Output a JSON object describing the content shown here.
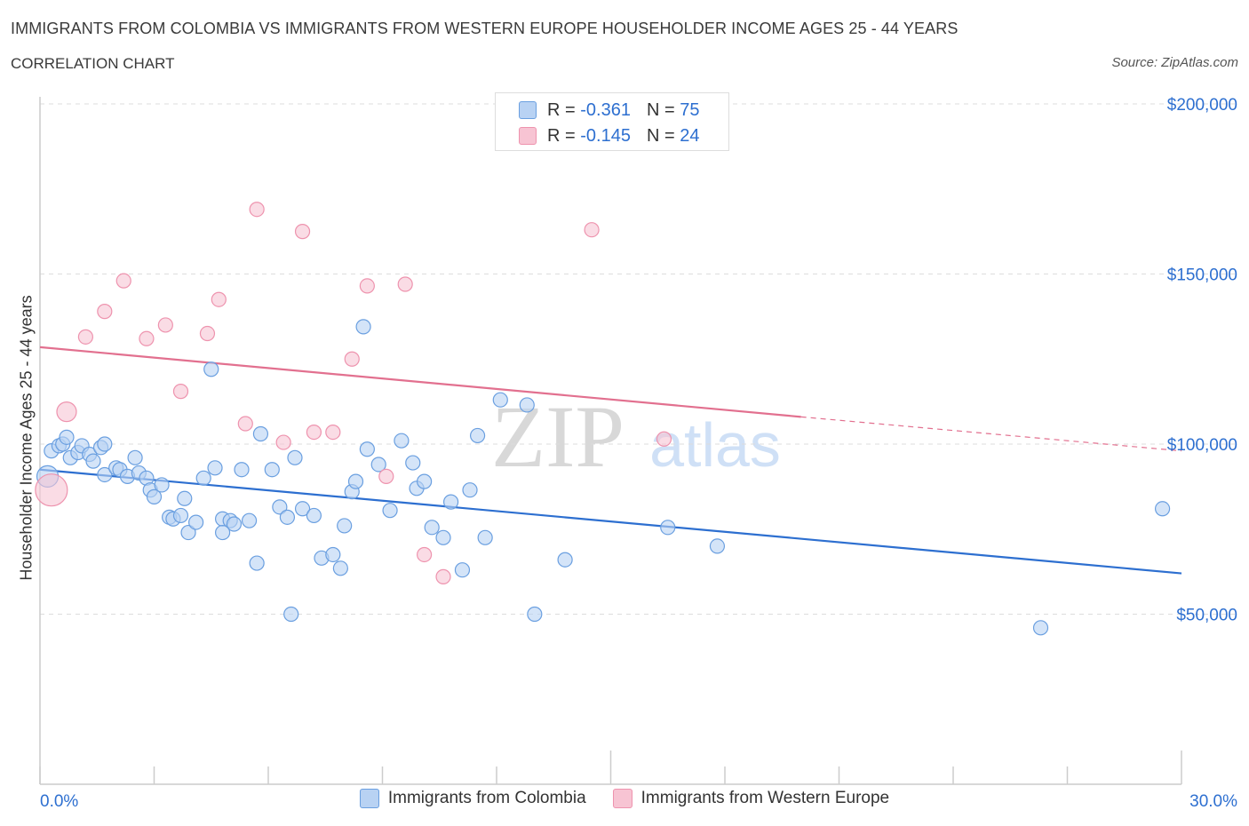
{
  "header": {
    "title": "IMMIGRANTS FROM COLOMBIA VS IMMIGRANTS FROM WESTERN EUROPE HOUSEHOLDER INCOME AGES 25 - 44 YEARS",
    "subtitle": "CORRELATION CHART",
    "source": "Source: ZipAtlas.com"
  },
  "watermark": {
    "zip": "ZIP",
    "atlas": "atlas"
  },
  "legend": {
    "rows": [
      {
        "r_label": "R =",
        "r_value": "-0.361",
        "n_label": "N =",
        "n_value": "75"
      },
      {
        "r_label": "R =",
        "r_value": "-0.145",
        "n_label": "N =",
        "n_value": "24"
      }
    ]
  },
  "colors": {
    "blue_fill": "#b8d2f3",
    "blue_stroke": "#6a9fe0",
    "blue_line": "#2d6fd0",
    "pink_fill": "#f7c4d3",
    "pink_stroke": "#ee93ae",
    "pink_line": "#e2708f",
    "tick_label": "#2d6fd0",
    "grid": "#dcdcdc"
  },
  "chart_data": {
    "type": "scatter",
    "xlabel": "",
    "ylabel": "Householder Income Ages 25 - 44 years",
    "xlim": [
      0,
      30
    ],
    "ylim": [
      0,
      200000
    ],
    "x_tick_labels": [
      "0.0%",
      "30.0%"
    ],
    "y_ticks": [
      50000,
      100000,
      150000,
      200000
    ],
    "y_tick_labels": [
      "$50,000",
      "$100,000",
      "$150,000",
      "$200,000"
    ],
    "grid": "horizontal dashed",
    "legend_position": "top-center",
    "series": [
      {
        "name": "Immigrants from Colombia",
        "color": "blue",
        "points": [
          [
            0.2,
            90500
          ],
          [
            0.3,
            98000
          ],
          [
            0.5,
            99500
          ],
          [
            0.6,
            100000
          ],
          [
            0.7,
            102000
          ],
          [
            0.8,
            96000
          ],
          [
            1.0,
            97500
          ],
          [
            1.1,
            99500
          ],
          [
            1.3,
            97000
          ],
          [
            1.4,
            95000
          ],
          [
            1.6,
            99000
          ],
          [
            1.7,
            100000
          ],
          [
            1.7,
            91000
          ],
          [
            2.0,
            93000
          ],
          [
            2.1,
            92500
          ],
          [
            2.3,
            90500
          ],
          [
            2.5,
            96000
          ],
          [
            2.6,
            91500
          ],
          [
            2.8,
            90000
          ],
          [
            2.9,
            86500
          ],
          [
            3.0,
            84500
          ],
          [
            3.2,
            88000
          ],
          [
            3.4,
            78500
          ],
          [
            3.5,
            78000
          ],
          [
            3.7,
            79000
          ],
          [
            3.8,
            84000
          ],
          [
            3.9,
            74000
          ],
          [
            4.1,
            77000
          ],
          [
            4.3,
            90000
          ],
          [
            4.5,
            122000
          ],
          [
            4.6,
            93000
          ],
          [
            4.8,
            78000
          ],
          [
            4.8,
            74000
          ],
          [
            5.0,
            77500
          ],
          [
            5.1,
            76500
          ],
          [
            5.3,
            92500
          ],
          [
            5.5,
            77500
          ],
          [
            5.7,
            65000
          ],
          [
            5.8,
            103000
          ],
          [
            6.1,
            92500
          ],
          [
            6.3,
            81500
          ],
          [
            6.5,
            78500
          ],
          [
            6.6,
            50000
          ],
          [
            6.7,
            96000
          ],
          [
            6.9,
            81000
          ],
          [
            7.2,
            79000
          ],
          [
            7.4,
            66500
          ],
          [
            7.7,
            67500
          ],
          [
            7.9,
            63500
          ],
          [
            8.0,
            76000
          ],
          [
            8.2,
            86000
          ],
          [
            8.3,
            89000
          ],
          [
            8.5,
            134500
          ],
          [
            8.6,
            98500
          ],
          [
            8.9,
            94000
          ],
          [
            9.2,
            80500
          ],
          [
            9.5,
            101000
          ],
          [
            9.8,
            94500
          ],
          [
            9.9,
            87000
          ],
          [
            10.1,
            89000
          ],
          [
            10.3,
            75500
          ],
          [
            10.6,
            72500
          ],
          [
            10.8,
            83000
          ],
          [
            11.1,
            63000
          ],
          [
            11.3,
            86500
          ],
          [
            11.5,
            102500
          ],
          [
            11.7,
            72500
          ],
          [
            12.1,
            113000
          ],
          [
            12.8,
            111500
          ],
          [
            13.0,
            50000
          ],
          [
            13.8,
            66000
          ],
          [
            16.5,
            75500
          ],
          [
            17.8,
            70000
          ],
          [
            26.3,
            46000
          ],
          [
            29.5,
            81000
          ]
        ]
      },
      {
        "name": "Immigrants from Western Europe",
        "color": "pink",
        "points": [
          [
            0.3,
            86500
          ],
          [
            0.7,
            109500
          ],
          [
            1.2,
            131500
          ],
          [
            1.7,
            139000
          ],
          [
            2.2,
            148000
          ],
          [
            2.8,
            131000
          ],
          [
            3.3,
            135000
          ],
          [
            3.7,
            115500
          ],
          [
            4.4,
            132500
          ],
          [
            4.7,
            142500
          ],
          [
            5.4,
            106000
          ],
          [
            5.7,
            169000
          ],
          [
            6.4,
            100500
          ],
          [
            6.9,
            162500
          ],
          [
            7.2,
            103500
          ],
          [
            7.7,
            103500
          ],
          [
            8.2,
            125000
          ],
          [
            8.6,
            146500
          ],
          [
            9.1,
            90500
          ],
          [
            9.6,
            147000
          ],
          [
            10.1,
            67500
          ],
          [
            10.6,
            61000
          ],
          [
            14.5,
            163000
          ],
          [
            16.4,
            101500
          ]
        ]
      }
    ],
    "trendlines": [
      {
        "series": "Immigrants from Colombia",
        "x": [
          0,
          30
        ],
        "y": [
          92500,
          62000
        ]
      },
      {
        "series": "Immigrants from Western Europe",
        "x": [
          0,
          20
        ],
        "y": [
          128500,
          108000
        ],
        "dashed_extension_to": [
          30,
          98000
        ]
      }
    ]
  },
  "bottom_legend": {
    "items": [
      {
        "label": "Immigrants from Colombia"
      },
      {
        "label": "Immigrants from Western Europe"
      }
    ]
  }
}
